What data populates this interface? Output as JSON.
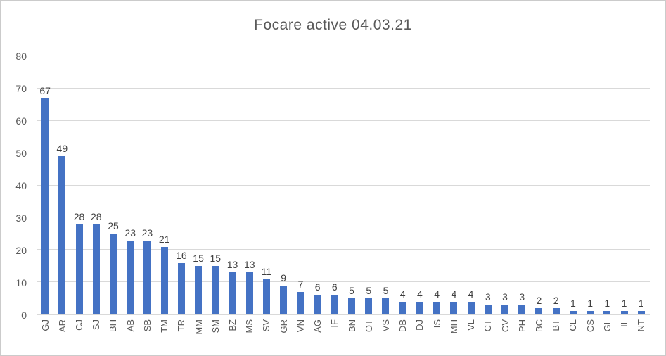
{
  "chart_data": {
    "type": "bar",
    "title": "Focare active 04.03.21",
    "xlabel": "",
    "ylabel": "",
    "ylim": [
      0,
      80
    ],
    "y_ticks": [
      0,
      10,
      20,
      30,
      40,
      50,
      60,
      70,
      80
    ],
    "grid": true,
    "legend": "none",
    "data_labels": "outside-end",
    "categories": [
      "GJ",
      "AR",
      "CJ",
      "SJ",
      "BH",
      "AB",
      "SB",
      "TM",
      "TR",
      "MM",
      "SM",
      "BZ",
      "MS",
      "SV",
      "GR",
      "VN",
      "AG",
      "IF",
      "BN",
      "OT",
      "VS",
      "DB",
      "DJ",
      "IS",
      "MH",
      "VL",
      "CT",
      "CV",
      "PH",
      "BC",
      "BT",
      "CL",
      "CS",
      "GL",
      "IL",
      "NT"
    ],
    "values": [
      67,
      49,
      28,
      28,
      25,
      23,
      23,
      21,
      16,
      15,
      15,
      13,
      13,
      11,
      9,
      7,
      6,
      6,
      5,
      5,
      5,
      4,
      4,
      4,
      4,
      4,
      3,
      3,
      3,
      2,
      2,
      1,
      1,
      1,
      1,
      1
    ]
  },
  "style": {
    "bar_color": "#4472c4",
    "gridline_color": "#d9d9d9",
    "title_color": "#595959",
    "axis_label_color": "#595959",
    "data_label_color": "#404040"
  }
}
